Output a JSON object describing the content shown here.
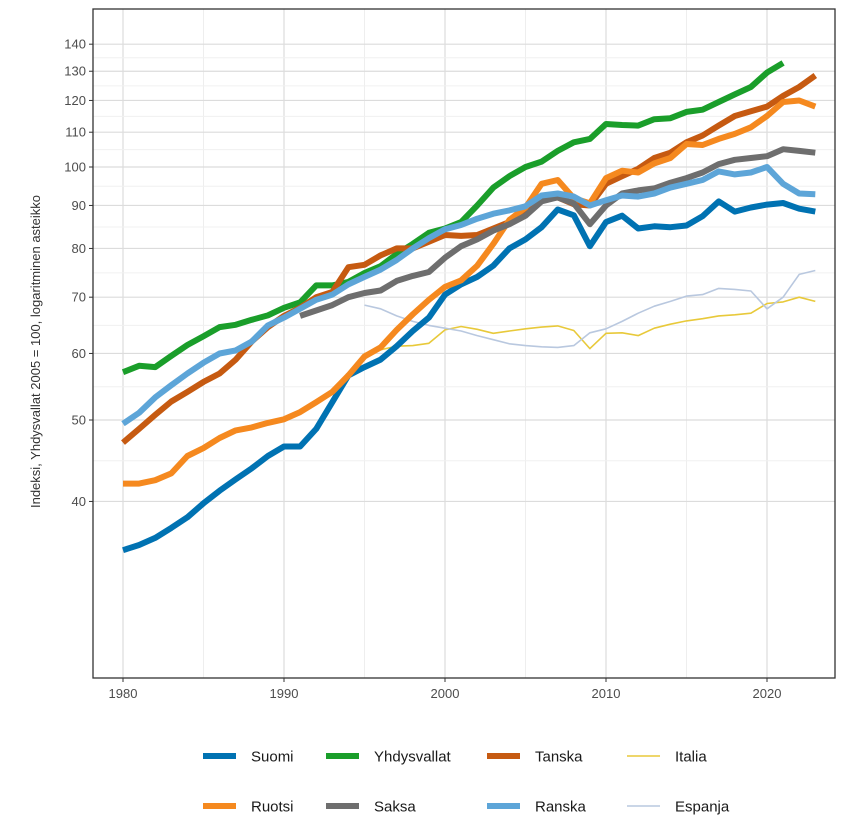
{
  "chart_data": {
    "type": "line",
    "title": "",
    "xlabel": "",
    "ylabel": "Indeksi, Yhdysvallat 2005 = 100, logaritminen asteikko",
    "y_scale": "log",
    "xlim": [
      1978,
      2025
    ],
    "ylim": [
      33,
      145
    ],
    "x_ticks": [
      1980,
      1990,
      2000,
      2010,
      2020
    ],
    "y_ticks": [
      40,
      50,
      60,
      70,
      80,
      90,
      100,
      110,
      120,
      130,
      140
    ],
    "grid": true,
    "legend_position": "bottom",
    "series": [
      {
        "name": "Suomi",
        "color": "#0072B2",
        "weight": "thick",
        "x": [
          1980,
          1981,
          1982,
          1983,
          1984,
          1985,
          1986,
          1987,
          1988,
          1989,
          1990,
          1991,
          1992,
          1993,
          1994,
          1995,
          1996,
          1997,
          1998,
          1999,
          2000,
          2001,
          2002,
          2003,
          2004,
          2005,
          2006,
          2007,
          2008,
          2009,
          2010,
          2011,
          2012,
          2013,
          2014,
          2015,
          2016,
          2017,
          2018,
          2019,
          2020,
          2021,
          2022,
          2023
        ],
        "values": [
          35,
          35.5,
          36.2,
          37.2,
          38.3,
          39.8,
          41.2,
          42.5,
          43.8,
          45.3,
          46.5,
          46.5,
          48.8,
          52.5,
          56.5,
          57.8,
          59.0,
          61.2,
          63.8,
          66.2,
          70.5,
          72.5,
          74.0,
          76.3,
          80.0,
          82.0,
          84.8,
          89.0,
          87.6,
          80.5,
          86.0,
          87.5,
          84.5,
          85.0,
          84.8,
          85.2,
          87.4,
          91.0,
          88.5,
          89.5,
          90.2,
          90.6,
          89.2,
          88.5
        ]
      },
      {
        "name": "Yhdysvallat",
        "color": "#1A9E2A",
        "weight": "thick",
        "x": [
          1980,
          1981,
          1982,
          1983,
          1984,
          1985,
          1986,
          1987,
          1988,
          1989,
          1990,
          1991,
          1992,
          1993,
          1994,
          1995,
          1996,
          1997,
          1998,
          1999,
          2000,
          2001,
          2002,
          2003,
          2004,
          2005,
          2006,
          2007,
          2008,
          2009,
          2010,
          2011,
          2012,
          2013,
          2014,
          2015,
          2016,
          2017,
          2018,
          2019,
          2020,
          2021
        ],
        "values": [
          57.0,
          58.0,
          57.8,
          59.6,
          61.4,
          62.9,
          64.5,
          64.9,
          65.8,
          66.6,
          68.0,
          69.0,
          72.3,
          72.3,
          73.0,
          74.8,
          76.2,
          78.8,
          81.0,
          83.5,
          84.5,
          86.0,
          90.0,
          94.5,
          97.5,
          100,
          101.5,
          104.5,
          107.0,
          108.0,
          112.5,
          112.2,
          112.0,
          114.0,
          114.3,
          116.3,
          117.0,
          119.5,
          122.0,
          124.5,
          129.5,
          133.0
        ]
      },
      {
        "name": "Tanska",
        "color": "#C65A11",
        "weight": "thick",
        "x": [
          1980,
          1981,
          1982,
          1983,
          1984,
          1985,
          1986,
          1987,
          1988,
          1989,
          1990,
          1991,
          1992,
          1993,
          1994,
          1995,
          1996,
          1997,
          1998,
          1999,
          2000,
          2001,
          2002,
          2003,
          2004,
          2005,
          2006,
          2007,
          2008,
          2009,
          2010,
          2011,
          2012,
          2013,
          2014,
          2015,
          2016,
          2017,
          2018,
          2019,
          2020,
          2021,
          2022,
          2023
        ],
        "values": [
          47.0,
          48.8,
          50.7,
          52.6,
          54.0,
          55.5,
          56.8,
          59.0,
          62.0,
          64.5,
          66.5,
          68.0,
          70.0,
          71.0,
          76.0,
          76.5,
          78.5,
          80.0,
          80.0,
          81.5,
          83.0,
          82.8,
          83.0,
          84.5,
          86.0,
          88.0,
          91.5,
          92.0,
          90.3,
          90.0,
          95.5,
          97.5,
          99.5,
          102.5,
          104.0,
          107.0,
          109.0,
          112.0,
          115.0,
          116.5,
          118.0,
          121.5,
          124.5,
          128.5
        ]
      },
      {
        "name": "Italia",
        "color": "#E8C93A",
        "weight": "thin",
        "x": [
          1995,
          1996,
          1997,
          1998,
          1999,
          2000,
          2001,
          2002,
          2003,
          2004,
          2005,
          2006,
          2007,
          2008,
          2009,
          2010,
          2011,
          2012,
          2013,
          2014,
          2015,
          2016,
          2017,
          2018,
          2019,
          2020,
          2021,
          2022,
          2023
        ],
        "values": [
          60.0,
          60.6,
          61.2,
          61.3,
          61.7,
          64.0,
          64.6,
          64.1,
          63.4,
          63.8,
          64.2,
          64.5,
          64.7,
          63.9,
          60.8,
          63.4,
          63.5,
          63.0,
          64.3,
          65.0,
          65.6,
          66.0,
          66.5,
          66.7,
          67.0,
          68.8,
          69.1,
          70.0,
          69.2
        ]
      },
      {
        "name": "Ruotsi",
        "color": "#F5891F",
        "weight": "thick",
        "x": [
          1980,
          1981,
          1982,
          1983,
          1984,
          1985,
          1986,
          1987,
          1988,
          1989,
          1990,
          1991,
          1992,
          1993,
          1994,
          1995,
          1996,
          1997,
          1998,
          1999,
          2000,
          2001,
          2002,
          2003,
          2004,
          2005,
          2006,
          2007,
          2008,
          2009,
          2010,
          2011,
          2012,
          2013,
          2014,
          2015,
          2016,
          2017,
          2018,
          2019,
          2020,
          2021,
          2022,
          2023
        ],
        "values": [
          42.0,
          42.0,
          42.4,
          43.2,
          45.3,
          46.3,
          47.6,
          48.6,
          49.0,
          49.6,
          50.1,
          51.1,
          52.5,
          54.0,
          56.5,
          59.5,
          61.0,
          64.0,
          66.8,
          69.5,
          72.0,
          73.3,
          76.3,
          81.0,
          86.5,
          89.5,
          95.5,
          96.5,
          91.8,
          90.5,
          97.0,
          99.0,
          98.5,
          101.0,
          102.5,
          106.5,
          106.2,
          108.0,
          109.5,
          111.5,
          115.0,
          119.5,
          120.0,
          118.0
        ]
      },
      {
        "name": "Saksa",
        "color": "#6E6E6E",
        "weight": "thick",
        "x": [
          1991,
          1992,
          1993,
          1994,
          1995,
          1996,
          1997,
          1998,
          1999,
          2000,
          2001,
          2002,
          2003,
          2004,
          2005,
          2006,
          2007,
          2008,
          2009,
          2010,
          2011,
          2012,
          2013,
          2014,
          2015,
          2016,
          2017,
          2018,
          2019,
          2020,
          2021,
          2022,
          2023
        ],
        "values": [
          66.5,
          67.5,
          68.5,
          70.0,
          70.8,
          71.3,
          73.2,
          74.2,
          75.0,
          78.0,
          80.5,
          82.0,
          84.0,
          85.5,
          87.5,
          91.0,
          92.0,
          90.5,
          85.5,
          90.0,
          93.0,
          93.8,
          94.3,
          95.8,
          97.0,
          98.5,
          100.8,
          102.0,
          102.5,
          103.0,
          105.0,
          104.5,
          104.0
        ]
      },
      {
        "name": "Ranska",
        "color": "#5DA5D8",
        "weight": "thick",
        "x": [
          1980,
          1981,
          1982,
          1983,
          1984,
          1985,
          1986,
          1987,
          1988,
          1989,
          1990,
          1991,
          1992,
          1993,
          1994,
          1995,
          1996,
          1997,
          1998,
          1999,
          2000,
          2001,
          2002,
          2003,
          2004,
          2005,
          2006,
          2007,
          2008,
          2009,
          2010,
          2011,
          2012,
          2013,
          2014,
          2015,
          2016,
          2017,
          2018,
          2019,
          2020,
          2021,
          2022,
          2023
        ],
        "values": [
          49.5,
          51.0,
          53.2,
          55.0,
          56.8,
          58.5,
          60.0,
          60.5,
          62.0,
          64.8,
          66.2,
          67.8,
          69.5,
          70.5,
          72.5,
          74.0,
          75.5,
          77.5,
          80.0,
          82.3,
          84.3,
          85.3,
          86.8,
          88.0,
          88.8,
          89.8,
          92.5,
          93.0,
          92.2,
          90.0,
          91.3,
          92.5,
          92.2,
          93.0,
          94.5,
          95.5,
          96.5,
          98.8,
          98.0,
          98.5,
          100.0,
          95.5,
          93.0,
          92.8
        ]
      },
      {
        "name": "Espanja",
        "color": "#B9C8DF",
        "weight": "thin",
        "x": [
          1995,
          1996,
          1997,
          1998,
          1999,
          2000,
          2001,
          2002,
          2003,
          2004,
          2005,
          2006,
          2007,
          2008,
          2009,
          2010,
          2011,
          2012,
          2013,
          2014,
          2015,
          2016,
          2017,
          2018,
          2019,
          2020,
          2021,
          2022,
          2023
        ],
        "values": [
          68.5,
          67.8,
          66.5,
          65.5,
          64.8,
          64.3,
          63.8,
          63.0,
          62.3,
          61.6,
          61.3,
          61.1,
          61.0,
          61.3,
          63.5,
          64.2,
          65.5,
          67.0,
          68.3,
          69.2,
          70.2,
          70.5,
          71.7,
          71.5,
          71.2,
          67.8,
          70.0,
          74.5,
          75.3
        ]
      }
    ]
  }
}
